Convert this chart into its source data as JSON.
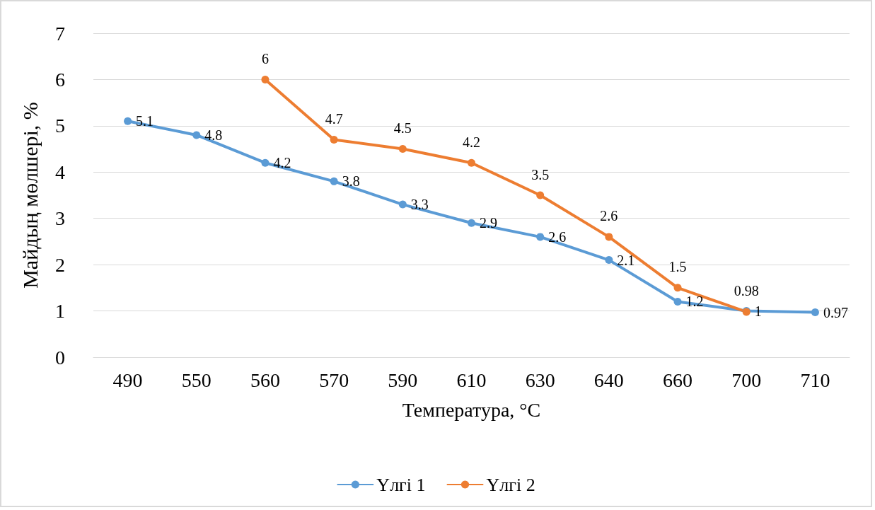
{
  "chart_data": {
    "type": "line",
    "xlabel": "Температура, °C",
    "ylabel": "Майдың мөлшері, %",
    "categories": [
      "490",
      "550",
      "560",
      "570",
      "590",
      "610",
      "630",
      "640",
      "660",
      "700",
      "710"
    ],
    "series": [
      {
        "name": "Үлгі 1",
        "color": "#5b9bd5",
        "values": [
          5.1,
          4.8,
          4.2,
          3.8,
          3.3,
          2.9,
          2.6,
          2.1,
          1.2,
          1,
          0.97
        ]
      },
      {
        "name": "Үлгі 2",
        "color": "#ed7d31",
        "values": [
          null,
          null,
          6,
          4.7,
          4.5,
          4.2,
          3.5,
          2.6,
          1.5,
          0.98,
          null
        ]
      }
    ],
    "ylim": [
      0,
      7
    ],
    "yticks": [
      0,
      1,
      2,
      3,
      4,
      5,
      6,
      7
    ],
    "grid": "y",
    "legend": "bottom",
    "marker": "circle",
    "line_style": "solid",
    "data_labels": true
  }
}
